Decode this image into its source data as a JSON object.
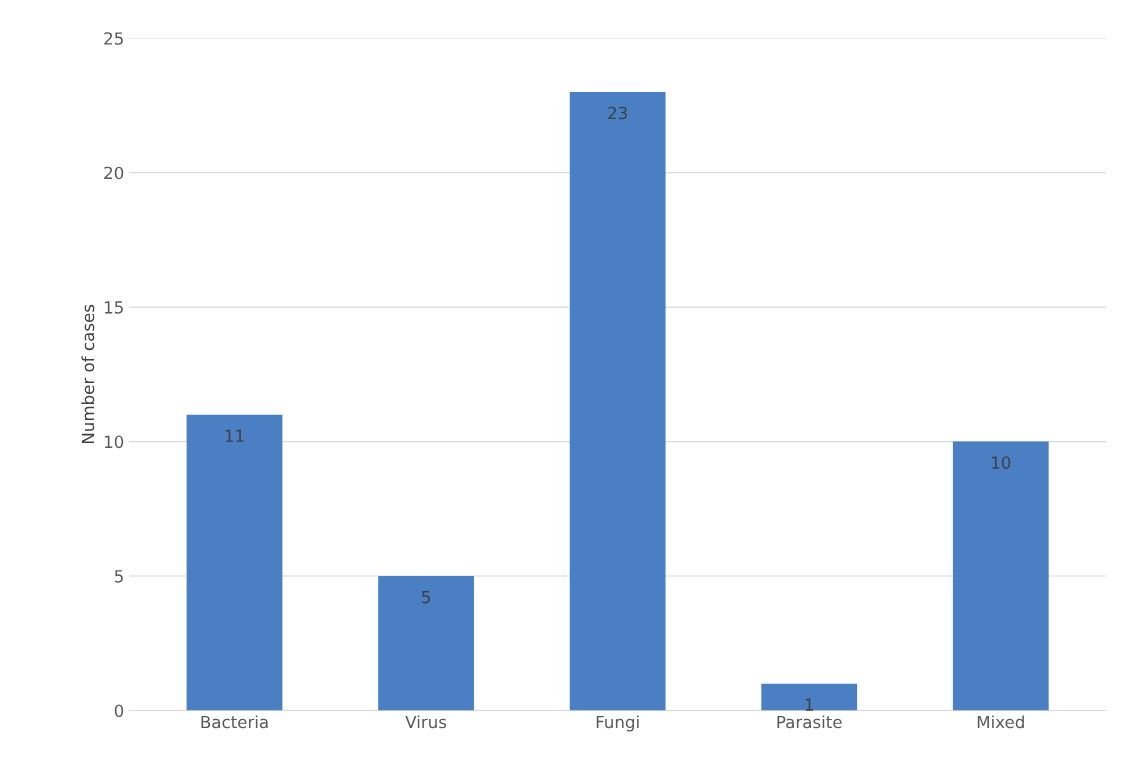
{
  "chart_data": {
    "type": "bar",
    "ylabel": "Number of cases",
    "categories": [
      "Bacteria",
      "Virus",
      "Fungi",
      "Parasite",
      "Mixed"
    ],
    "values": [
      11,
      5,
      23,
      1,
      10
    ],
    "color": "#4a7fc4",
    "ylim": [
      0,
      25
    ],
    "yticks": [
      0,
      5,
      10,
      15,
      20,
      25
    ],
    "grid": "y",
    "data_labels": true
  }
}
